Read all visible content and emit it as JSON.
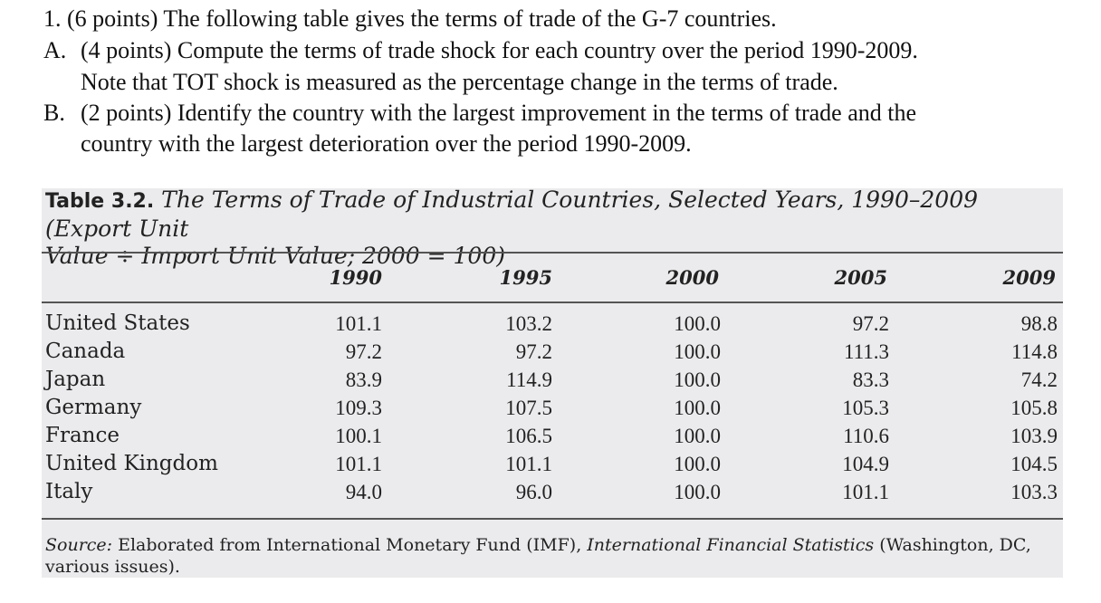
{
  "question": {
    "line1": "1. (6 points) The following table gives the terms of trade of the G-7 countries.",
    "partA_letter": "A.",
    "partA_line1": "(4 points) Compute the terms of trade shock for each country over the period 1990-2009.",
    "partA_line2": "Note that TOT shock is measured as the percentage change in the terms of trade.",
    "partB_letter": "B.",
    "partB_line1": "(2 points) Identify the country with the largest improvement in the terms of trade and the",
    "partB_line2": "country with the largest deterioration over the period 1990-2009."
  },
  "table": {
    "label": "Table 3.2.",
    "caption_line1": "The Terms of Trade of Industrial Countries, Selected Years, 1990–2009 (Export Unit",
    "caption_line2": "Value ÷ Import Unit Value; 2000 = 100)",
    "years": [
      "1990",
      "1995",
      "2000",
      "2005",
      "2009"
    ],
    "rows": [
      {
        "country": "United States",
        "values": [
          "101.1",
          "103.2",
          "100.0",
          "97.2",
          "98.8"
        ]
      },
      {
        "country": "Canada",
        "values": [
          "97.2",
          "97.2",
          "100.0",
          "111.3",
          "114.8"
        ]
      },
      {
        "country": "Japan",
        "values": [
          "83.9",
          "114.9",
          "100.0",
          "83.3",
          "74.2"
        ]
      },
      {
        "country": "Germany",
        "values": [
          "109.3",
          "107.5",
          "100.0",
          "105.3",
          "105.8"
        ]
      },
      {
        "country": "France",
        "values": [
          "100.1",
          "106.5",
          "100.0",
          "110.6",
          "103.9"
        ]
      },
      {
        "country": "United Kingdom",
        "values": [
          "101.1",
          "101.1",
          "100.0",
          "104.9",
          "104.5"
        ]
      },
      {
        "country": "Italy",
        "values": [
          "94.0",
          "96.0",
          "100.0",
          "101.1",
          "103.3"
        ]
      }
    ],
    "source_label": "Source:",
    "source_text1": " Elaborated from International Monetary Fund (IMF), ",
    "source_title": "International Financial Statistics",
    "source_text2": " (Washington, DC,",
    "source_text3": "various issues)."
  }
}
